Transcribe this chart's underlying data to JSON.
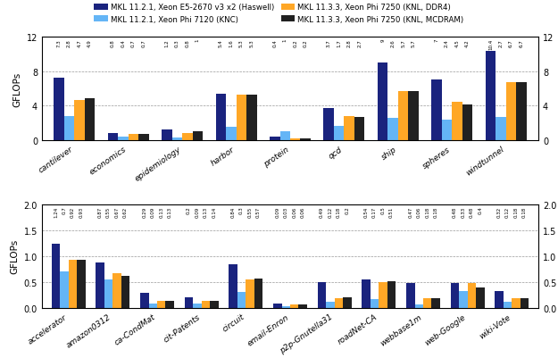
{
  "top": {
    "categories": [
      "cantilever",
      "economics",
      "epidemiology",
      "harbor",
      "protein",
      "qcd",
      "ship",
      "spheres",
      "windtunnel"
    ],
    "series": {
      "haswell": [
        7.3,
        0.8,
        1.2,
        5.4,
        0.4,
        3.7,
        9.0,
        7.0,
        10.4
      ],
      "knc": [
        2.8,
        0.4,
        0.3,
        1.6,
        1.0,
        1.7,
        2.6,
        2.4,
        2.7
      ],
      "knl_ddr4": [
        4.7,
        0.7,
        0.8,
        5.3,
        0.2,
        2.8,
        5.7,
        4.5,
        6.7
      ],
      "knl_mcdram": [
        4.9,
        0.7,
        1.0,
        5.3,
        0.2,
        2.7,
        5.7,
        4.2,
        6.7
      ]
    },
    "ylim": [
      0,
      12
    ],
    "yticks": [
      0,
      4,
      8,
      12
    ],
    "ylabel": "GFLOPs"
  },
  "bottom": {
    "categories": [
      "accelerator",
      "amazon0312",
      "ca-CondMat",
      "cit-Patents",
      "circuit",
      "email-Enron",
      "p2p-Gnutella31",
      "roadNet-CA",
      "webbase1m",
      "web-Google",
      "wiki-Vote"
    ],
    "series": {
      "haswell": [
        1.24,
        0.87,
        0.29,
        0.2,
        0.84,
        0.09,
        0.49,
        0.54,
        0.47,
        0.48,
        0.32
      ],
      "knc": [
        0.7,
        0.55,
        0.09,
        0.09,
        0.3,
        0.03,
        0.12,
        0.17,
        0.06,
        0.33,
        0.12
      ],
      "knl_ddr4": [
        0.92,
        0.67,
        0.13,
        0.13,
        0.55,
        0.06,
        0.18,
        0.5,
        0.18,
        0.48,
        0.18
      ],
      "knl_mcdram": [
        0.93,
        0.62,
        0.13,
        0.14,
        0.57,
        0.06,
        0.2,
        0.51,
        0.18,
        0.4,
        0.18
      ]
    },
    "ylim": [
      0,
      2.0
    ],
    "yticks": [
      0.0,
      0.5,
      1.0,
      1.5,
      2.0
    ],
    "ylabel": "GFLOPs"
  },
  "colors": {
    "haswell": "#1a237e",
    "knc": "#64b5f6",
    "knl_ddr4": "#ffa726",
    "knl_mcdram": "#212121"
  },
  "legend": {
    "haswell": "MKL 11.2.1, Xeon E5-2670 v3 x2 (Haswell)",
    "knc": "MKL 11.2.1, Xeon Phi 7120 (KNC)",
    "knl_ddr4": "MKL 11.3.3, Xeon Phi 7250 (KNL, DDR4)",
    "knl_mcdram": "MKL 11.3.3, Xeon Phi 7250 (KNL, MCDRAM)"
  },
  "bar_order": [
    "haswell",
    "knc",
    "knl_ddr4",
    "knl_mcdram"
  ]
}
